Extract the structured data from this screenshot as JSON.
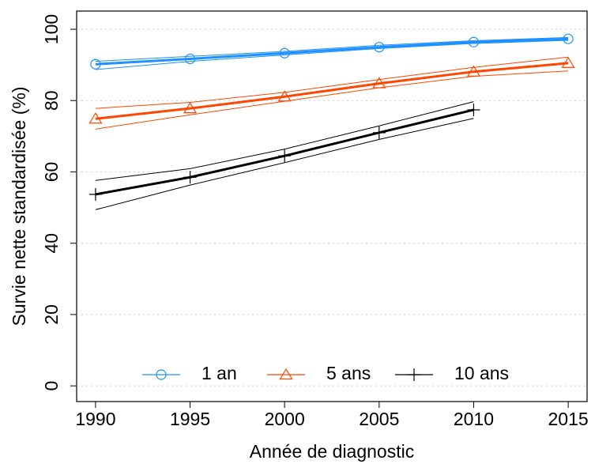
{
  "chart_data": {
    "type": "line",
    "xlabel": "Année de diagnostic",
    "ylabel": "Survie nette standardisée (%)",
    "xlim": [
      1989,
      2016
    ],
    "ylim": [
      -4.4,
      105.1
    ],
    "xticks": [
      1990,
      1995,
      2000,
      2005,
      2010,
      2015
    ],
    "yticks": [
      0,
      20,
      40,
      60,
      80,
      100
    ],
    "grid": true,
    "legend": "bottom",
    "series": [
      {
        "name": "1 an",
        "color": "#1e90ff",
        "marker": "circle",
        "x": [
          1990,
          1995,
          2000,
          2005,
          2010,
          2015
        ],
        "values": [
          90.2,
          91.7,
          93.3,
          95.0,
          96.4,
          97.3
        ],
        "ci_lower": [
          88.7,
          91.0,
          92.8,
          94.6,
          96.0,
          96.9
        ],
        "ci_upper": [
          91.0,
          92.4,
          93.8,
          95.5,
          96.8,
          97.7
        ]
      },
      {
        "name": "5 ans",
        "color": "#ff4500",
        "marker": "triangle",
        "x": [
          1990,
          1995,
          2000,
          2005,
          2010,
          2015
        ],
        "values": [
          74.9,
          77.8,
          81.1,
          84.8,
          88.1,
          90.5
        ],
        "ci_lower": [
          72.0,
          76.0,
          79.8,
          83.6,
          86.8,
          88.3
        ],
        "ci_upper": [
          77.8,
          79.5,
          82.3,
          85.9,
          89.3,
          92.2
        ]
      },
      {
        "name": "10 ans",
        "color": "#000000",
        "marker": "plus",
        "x": [
          1990,
          1995,
          2000,
          2005,
          2010
        ],
        "values": [
          53.7,
          58.5,
          64.5,
          71.0,
          77.4
        ],
        "ci_lower": [
          49.4,
          56.3,
          62.6,
          69.1,
          75.0
        ],
        "ci_upper": [
          57.6,
          60.9,
          66.4,
          72.9,
          79.7
        ]
      }
    ]
  }
}
